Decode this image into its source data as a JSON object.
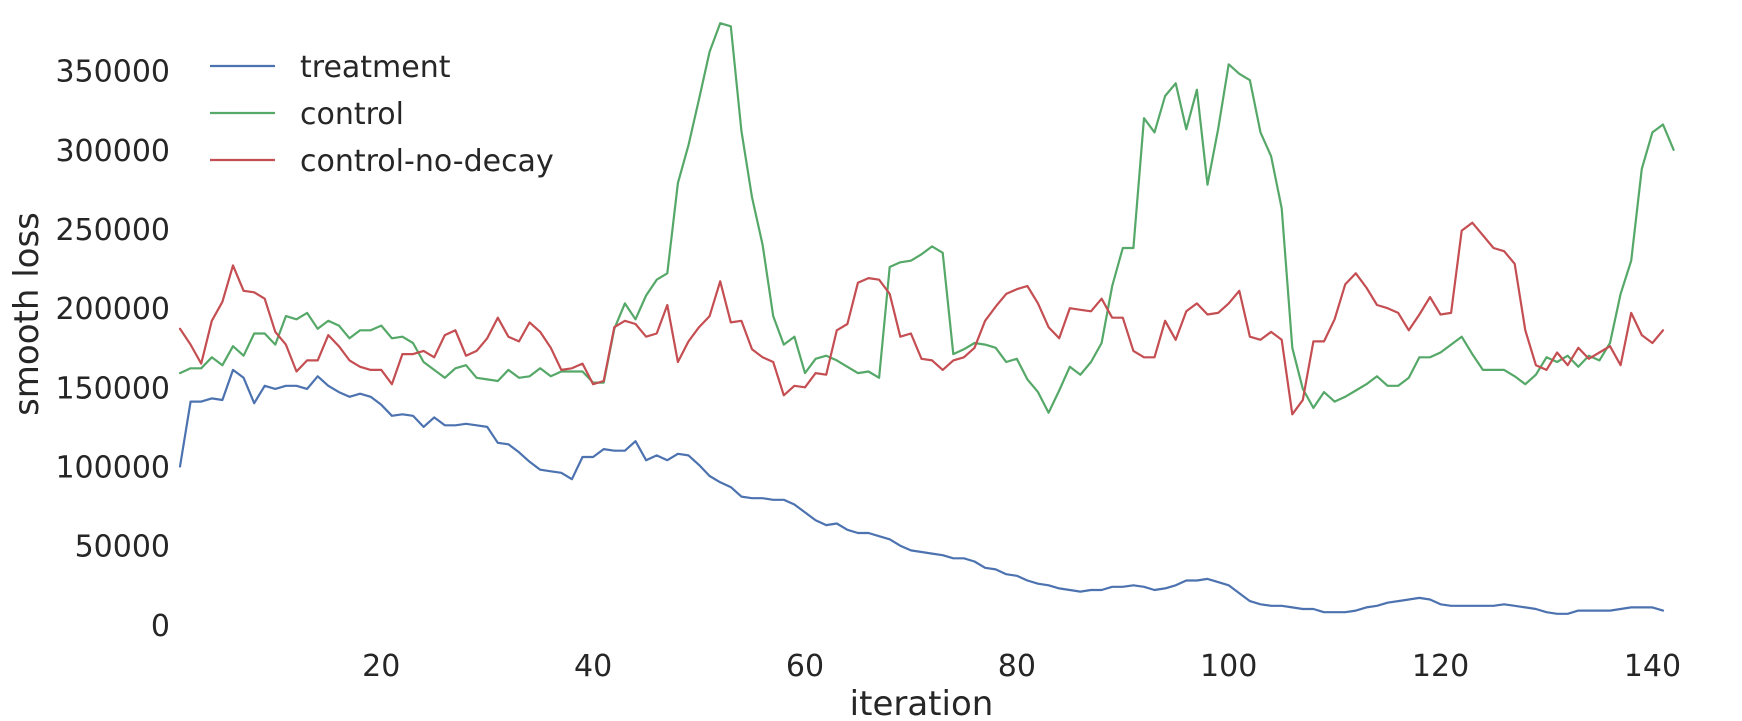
{
  "chart_data": {
    "type": "line",
    "title": "",
    "xlabel": "iteration",
    "ylabel": "smooth loss",
    "xlim": [
      1,
      141
    ],
    "ylim": [
      -2000,
      382000
    ],
    "x_ticks": [
      20,
      40,
      60,
      80,
      100,
      120,
      140
    ],
    "y_ticks": [
      0,
      50000,
      100000,
      150000,
      200000,
      250000,
      300000,
      350000
    ],
    "grid": false,
    "legend_position": "top-left",
    "series": [
      {
        "name": "treatment",
        "color": "#4c72b0",
        "values": [
          100000,
          141000,
          141000,
          143000,
          142000,
          161000,
          156000,
          140000,
          151000,
          149000,
          151000,
          151000,
          149000,
          157000,
          151000,
          147000,
          144000,
          146000,
          144000,
          139000,
          132000,
          133000,
          132000,
          125000,
          131000,
          126000,
          126000,
          127000,
          126000,
          125000,
          115000,
          114000,
          109000,
          103000,
          98000,
          97000,
          96000,
          92000,
          106000,
          106000,
          111000,
          110000,
          110000,
          116000,
          104000,
          107000,
          104000,
          108000,
          107000,
          101000,
          94000,
          90000,
          87000,
          81000,
          80000,
          80000,
          79000,
          79000,
          76000,
          71000,
          66000,
          63000,
          64000,
          60000,
          58000,
          58000,
          56000,
          54000,
          50000,
          47000,
          46000,
          45000,
          44000,
          42000,
          42000,
          40000,
          36000,
          35000,
          32000,
          31000,
          28000,
          26000,
          25000,
          23000,
          22000,
          21000,
          22000,
          22000,
          24000,
          24000,
          25000,
          24000,
          22000,
          23000,
          25000,
          28000,
          28000,
          29000,
          27000,
          25000,
          20000,
          15000,
          13000,
          12000,
          12000,
          11000,
          10000,
          10000,
          8000,
          8000,
          8000,
          9000,
          11000,
          12000,
          14000,
          15000,
          16000,
          17000,
          16000,
          13000,
          12000,
          12000,
          12000,
          12000,
          12000,
          13000,
          12000,
          11000,
          10000,
          8000,
          7000,
          7000,
          9000,
          9000,
          9000,
          9000,
          10000,
          11000,
          11000,
          11000,
          9000
        ]
      },
      {
        "name": "control",
        "color": "#55a868",
        "values": [
          159000,
          162000,
          162000,
          169000,
          164000,
          176000,
          170000,
          184000,
          184000,
          177000,
          195000,
          193000,
          197000,
          187000,
          192000,
          189000,
          181000,
          186000,
          186000,
          189000,
          181000,
          182000,
          178000,
          166000,
          161000,
          156000,
          162000,
          164000,
          156000,
          155000,
          154000,
          161000,
          156000,
          157000,
          162000,
          157000,
          160000,
          160000,
          160000,
          153000,
          153000,
          187000,
          203000,
          193000,
          208000,
          218000,
          222000,
          279000,
          303000,
          332000,
          362000,
          380000,
          378000,
          312000,
          270000,
          240000,
          195000,
          177000,
          182000,
          159000,
          168000,
          170000,
          167000,
          163000,
          159000,
          160000,
          156000,
          226000,
          229000,
          230000,
          234000,
          239000,
          235000,
          171000,
          174000,
          178000,
          177000,
          175000,
          166000,
          168000,
          155000,
          147000,
          134000,
          148000,
          163000,
          158000,
          166000,
          178000,
          214000,
          238000,
          238000,
          320000,
          311000,
          334000,
          342000,
          313000,
          338000,
          278000,
          313000,
          354000,
          348000,
          344000,
          311000,
          296000,
          263000,
          175000,
          149000,
          137000,
          147000,
          141000,
          144000,
          148000,
          152000,
          157000,
          151000,
          151000,
          156000,
          169000,
          169000,
          172000,
          177000,
          182000,
          171000,
          161000,
          161000,
          161000,
          157000,
          152000,
          158000,
          169000,
          166000,
          170000,
          163000,
          170000,
          167000,
          178000,
          209000,
          230000,
          288000,
          311000,
          316000,
          300000
        ]
      },
      {
        "name": "control-no-decay",
        "color": "#c44e52",
        "values": [
          187000,
          177000,
          165000,
          192000,
          204000,
          227000,
          211000,
          210000,
          206000,
          185000,
          177000,
          160000,
          167000,
          167000,
          183000,
          176000,
          167000,
          163000,
          161000,
          161000,
          152000,
          171000,
          171000,
          173000,
          169000,
          183000,
          186000,
          170000,
          173000,
          181000,
          194000,
          182000,
          179000,
          191000,
          185000,
          175000,
          161000,
          162000,
          165000,
          152000,
          154000,
          188000,
          192000,
          190000,
          182000,
          184000,
          202000,
          166000,
          179000,
          188000,
          195000,
          217000,
          191000,
          192000,
          174000,
          169000,
          166000,
          145000,
          151000,
          150000,
          159000,
          158000,
          186000,
          190000,
          216000,
          219000,
          218000,
          209000,
          182000,
          184000,
          168000,
          167000,
          161000,
          167000,
          169000,
          175000,
          192000,
          201000,
          209000,
          212000,
          214000,
          203000,
          188000,
          181000,
          200000,
          199000,
          198000,
          206000,
          194000,
          194000,
          173000,
          169000,
          169000,
          192000,
          180000,
          198000,
          203000,
          196000,
          197000,
          203000,
          211000,
          182000,
          180000,
          185000,
          180000,
          133000,
          142000,
          179000,
          179000,
          193000,
          215000,
          222000,
          213000,
          202000,
          200000,
          197000,
          186000,
          196000,
          207000,
          196000,
          197000,
          249000,
          254000,
          246000,
          238000,
          236000,
          228000,
          186000,
          164000,
          161000,
          172000,
          164000,
          175000,
          168000,
          172000,
          176000,
          164000,
          197000,
          183000,
          178000,
          186000
        ]
      }
    ]
  }
}
